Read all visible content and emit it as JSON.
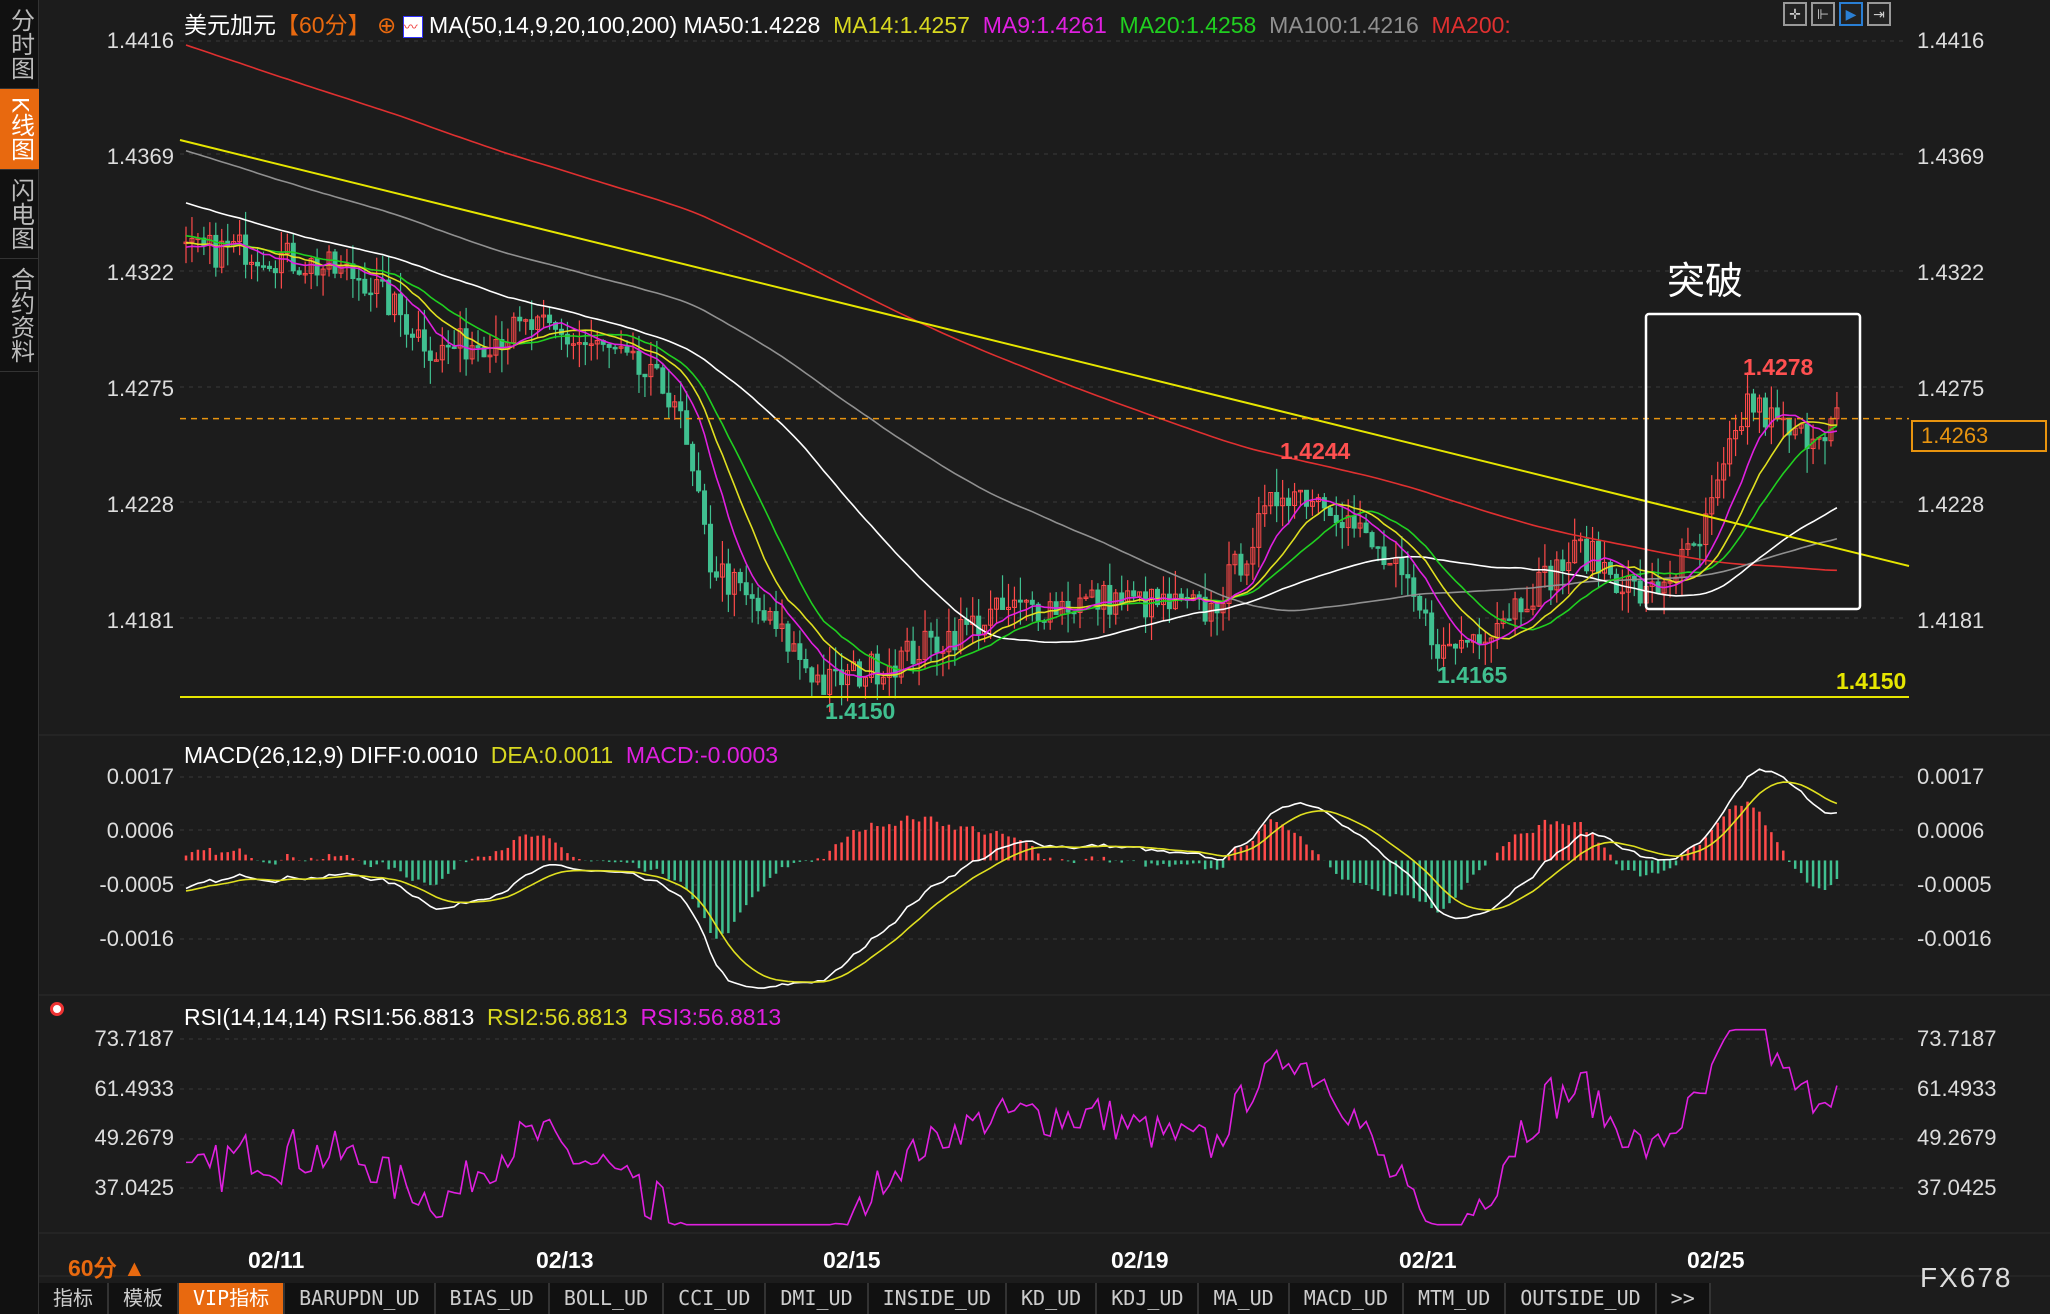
{
  "sidebar": {
    "tabs": [
      {
        "label": "分时图",
        "active": false
      },
      {
        "label": "K线图",
        "active": true
      },
      {
        "label": "闪电图",
        "active": false
      },
      {
        "label": "合约资料",
        "active": false
      }
    ]
  },
  "header": {
    "symbol": "美元加元",
    "period": "【60分】",
    "ma_params": "MA(50,14,9,20,100,200)",
    "ma50": "MA50:1.4228",
    "ma14": "MA14:1.4257",
    "ma9": "MA9:1.4261",
    "ma20": "MA20:1.4258",
    "ma100": "MA100:1.4216",
    "ma200": "MA200:"
  },
  "colors": {
    "ma50": "#ffffff",
    "ma14": "#e0e020",
    "ma9": "#e020e0",
    "ma20": "#20d020",
    "ma100": "#909090",
    "ma200": "#e03030",
    "up": "#ff4a4a",
    "down": "#40c090",
    "trend": "#e6e600",
    "accent": "#e8690f"
  },
  "toolbar_icons": [
    "crosshair-icon",
    "range-icon",
    "play-icon",
    "exit-icon"
  ],
  "price_axis": [
    "1.4416",
    "1.4369",
    "1.4322",
    "1.4275",
    "1.4228",
    "1.4181"
  ],
  "current_price": "1.4263",
  "annotations": {
    "box_title": "突破",
    "high_label": "1.4278",
    "peak_label": "1.4244",
    "low1_label": "1.4150",
    "low2_label": "1.4165",
    "support_label": "1.4150"
  },
  "macd": {
    "title": "MACD(26,12,9)",
    "diff": "DIFF:0.0010",
    "dea": "DEA:0.0011",
    "macd": "MACD:-0.0003",
    "axis": [
      "0.0017",
      "0.0006",
      "-0.0005",
      "-0.0016"
    ]
  },
  "rsi": {
    "title": "RSI(14,14,14)",
    "rsi1": "RSI1:56.8813",
    "rsi2": "RSI2:56.8813",
    "rsi3": "RSI3:56.8813",
    "axis": [
      "73.7187",
      "61.4933",
      "49.2679",
      "37.0425"
    ]
  },
  "dates": [
    "02/11",
    "02/13",
    "02/15",
    "02/19",
    "02/21",
    "02/25"
  ],
  "period_label": "60分 ▲",
  "brand": "FX678",
  "bottom_tabs": [
    {
      "label": "指标"
    },
    {
      "label": "模板"
    },
    {
      "label": "VIP指标",
      "active": true
    },
    {
      "label": "BARUPDN_UD"
    },
    {
      "label": "BIAS_UD"
    },
    {
      "label": "BOLL_UD"
    },
    {
      "label": "CCI_UD"
    },
    {
      "label": "DMI_UD"
    },
    {
      "label": "INSIDE_UD"
    },
    {
      "label": "KD_UD"
    },
    {
      "label": "KDJ_UD"
    },
    {
      "label": "MA_UD"
    },
    {
      "label": "MACD_UD"
    },
    {
      "label": "MTM_UD"
    },
    {
      "label": "OUTSIDE_UD"
    },
    {
      "label": ">>"
    }
  ],
  "chart_data": {
    "type": "candlestick",
    "price_path": [
      [
        0,
        1.433
      ],
      [
        10,
        1.4332
      ],
      [
        30,
        1.432
      ],
      [
        42,
        1.429
      ],
      [
        58,
        1.43
      ],
      [
        71,
        1.429
      ],
      [
        82,
        1.4272
      ],
      [
        88,
        1.4205
      ],
      [
        101,
        1.4172
      ],
      [
        107,
        1.4155
      ],
      [
        119,
        1.4165
      ],
      [
        137,
        1.4185
      ],
      [
        155,
        1.419
      ],
      [
        172,
        1.4185
      ],
      [
        184,
        1.4235
      ],
      [
        192,
        1.423
      ],
      [
        203,
        1.42
      ],
      [
        211,
        1.4168
      ],
      [
        219,
        1.418
      ],
      [
        234,
        1.421
      ],
      [
        245,
        1.419
      ],
      [
        254,
        1.4212
      ],
      [
        262,
        1.427
      ],
      [
        270,
        1.4255
      ],
      [
        277,
        1.4263
      ]
    ],
    "ylim": [
      1.414,
      1.4425
    ]
  }
}
